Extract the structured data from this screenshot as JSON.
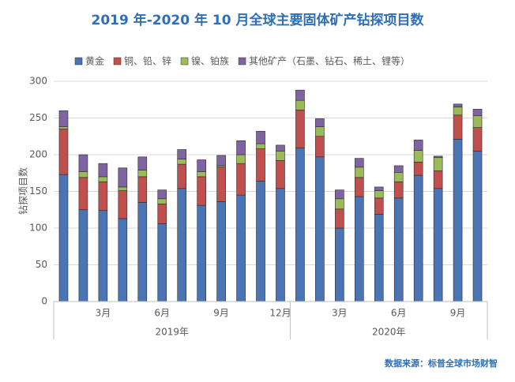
{
  "chart_data": {
    "type": "stacked_bar",
    "title": "2019 年-2020 年 10 月全球主要固体矿产钻探项目数",
    "y_label": "钻探项目数",
    "source": "数据来源：标普全球市场财智",
    "categories": [
      null,
      null,
      "3月",
      null,
      null,
      "6月",
      null,
      null,
      "9月",
      null,
      null,
      "12月",
      null,
      null,
      "3月",
      null,
      null,
      "6月",
      null,
      null,
      "9月",
      null
    ],
    "x_groups": [
      {
        "label": "2019年",
        "count": 12
      },
      {
        "label": "2020年",
        "count": 10
      }
    ],
    "series": [
      {
        "name": "黄金",
        "color": "#4a74b4",
        "values": [
          173,
          125,
          124,
          113,
          135,
          106,
          154,
          131,
          136,
          145,
          164,
          154,
          209,
          197,
          100,
          143,
          119,
          141,
          172,
          154,
          221,
          205
        ]
      },
      {
        "name": "铜、铅、锌",
        "color": "#c0504d",
        "values": [
          62,
          44,
          39,
          38,
          35,
          27,
          33,
          39,
          47,
          43,
          44,
          38,
          52,
          28,
          26,
          26,
          22,
          22,
          18,
          24,
          33,
          32
        ]
      },
      {
        "name": "镍、铂族",
        "color": "#9bbb59",
        "values": [
          3,
          8,
          7,
          5,
          9,
          7,
          7,
          7,
          2,
          12,
          7,
          13,
          13,
          13,
          14,
          14,
          10,
          13,
          16,
          18,
          11,
          16
        ]
      },
      {
        "name": "其他矿产（石墨、钻石、稀土、锂等）",
        "color": "#8064a2",
        "values": [
          22,
          23,
          18,
          26,
          18,
          12,
          13,
          16,
          14,
          19,
          17,
          8,
          14,
          11,
          12,
          12,
          5,
          9,
          14,
          2,
          4,
          9
        ]
      }
    ],
    "ylim": [
      0,
      300
    ],
    "yticks": [
      0,
      50,
      100,
      150,
      200,
      250,
      300
    ],
    "grid": true
  }
}
